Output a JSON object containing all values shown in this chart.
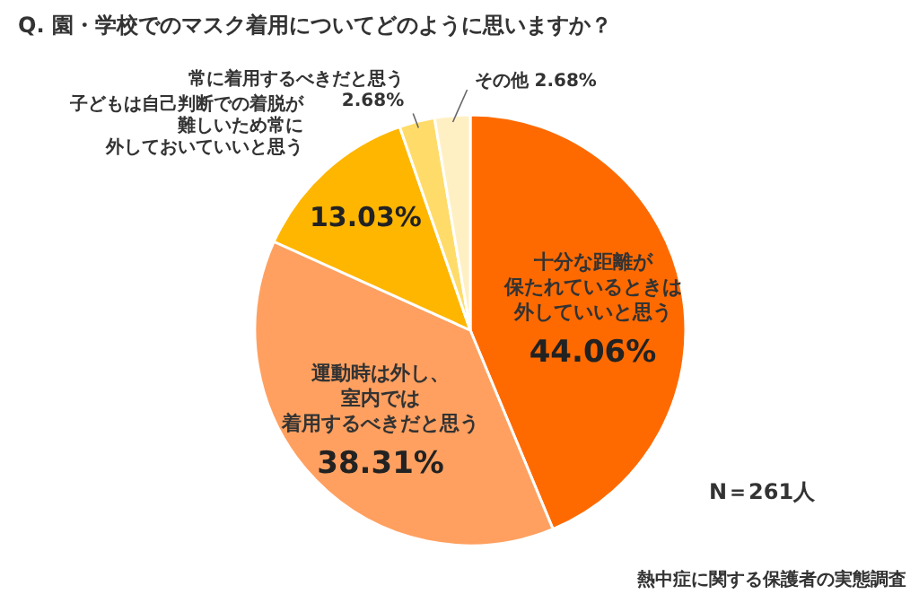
{
  "chart_data": {
    "type": "pie",
    "title": "Q. 園・学校でのマスク着用についてどのように思いますか？",
    "categories": [
      "十分な距離が保たれているときは外していいと思う",
      "運動時は外し、室内では着用するべきだと思う",
      "子どもは自己判断での着脱が難しいため常に外しておいていいと思う",
      "常に着用するべきだと思う",
      "その他"
    ],
    "values": [
      44.06,
      38.31,
      13.03,
      2.68,
      2.68
    ],
    "colors": [
      "#ff6a00",
      "#ffa060",
      "#ffb600",
      "#ffdc6a",
      "#fff0c4"
    ],
    "value_labels": [
      "44.06%",
      "38.31%",
      "13.03%",
      "2.68%",
      "2.68%"
    ],
    "annotations": [
      "N＝261人",
      "熱中症に関する保護者の実態調査"
    ]
  }
}
